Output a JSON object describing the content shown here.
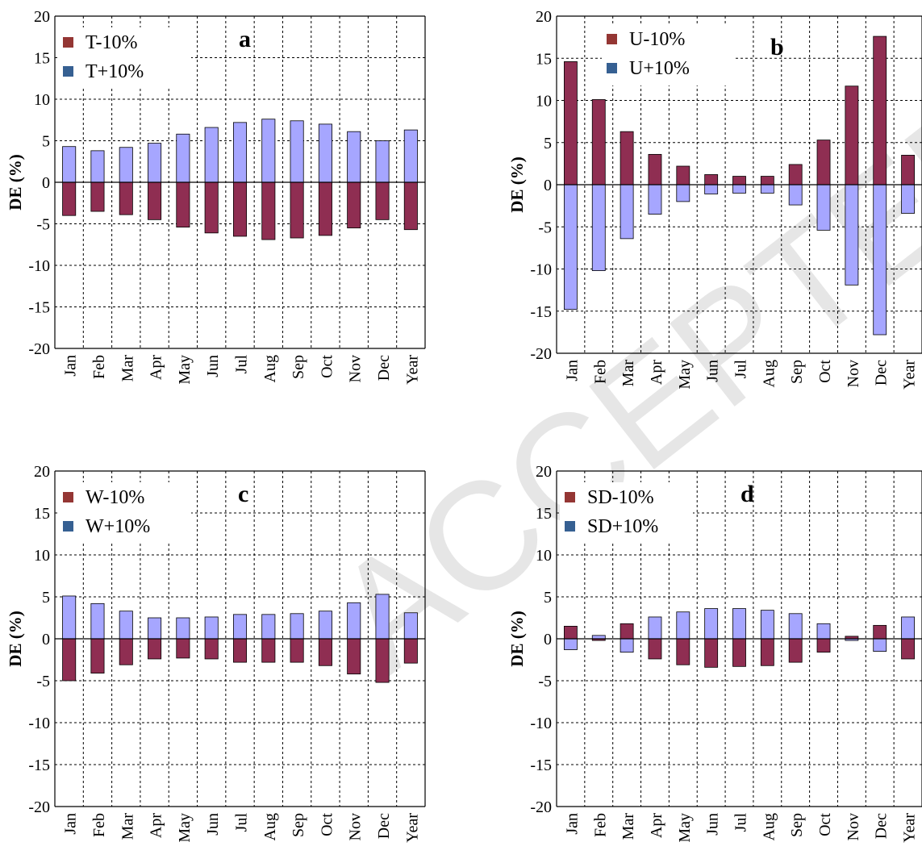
{
  "colors": {
    "minus": "#8f2e52",
    "plus": "#a6a6ff",
    "minus_legend": "#943634",
    "plus_legend": "#366092"
  },
  "watermark": "ACCEPTED",
  "chart_data": [
    {
      "panel": "a",
      "type": "bar",
      "ylabel": "DE (%)",
      "ylim": [
        -20,
        20
      ],
      "yticks": [
        -20,
        -15,
        -10,
        -5,
        0,
        5,
        10,
        15,
        20
      ],
      "categories": [
        "Jan",
        "Feb",
        "Mar",
        "Apr",
        "May",
        "Jun",
        "Jul",
        "Aug",
        "Sep",
        "Oct",
        "Nov",
        "Dec",
        "Year"
      ],
      "grid": true,
      "legend_position": "top-left",
      "series": [
        {
          "name": "T-10%",
          "values": [
            -4.0,
            -3.5,
            -3.9,
            -4.5,
            -5.4,
            -6.1,
            -6.5,
            -6.9,
            -6.7,
            -6.4,
            -5.5,
            -4.5,
            -5.7
          ]
        },
        {
          "name": "T+10%",
          "values": [
            4.3,
            3.8,
            4.2,
            4.7,
            5.8,
            6.6,
            7.2,
            7.6,
            7.4,
            7.0,
            6.1,
            5.0,
            6.3
          ]
        }
      ]
    },
    {
      "panel": "b",
      "type": "bar",
      "ylabel": "DE (%)",
      "ylim": [
        -20,
        20
      ],
      "yticks": [
        -20,
        -15,
        -10,
        -5,
        0,
        5,
        10,
        15,
        20
      ],
      "categories": [
        "Jan",
        "Feb",
        "Mar",
        "Apr",
        "May",
        "Jun",
        "Jul",
        "Aug",
        "Sep",
        "Oct",
        "Nov",
        "Dec",
        "Year"
      ],
      "grid": true,
      "legend_position": "top-left",
      "series": [
        {
          "name": "U-10%",
          "values": [
            14.6,
            10.1,
            6.3,
            3.6,
            2.2,
            1.2,
            1.0,
            1.0,
            2.4,
            5.3,
            11.7,
            17.6,
            3.5
          ]
        },
        {
          "name": "U+10%",
          "values": [
            -14.8,
            -10.2,
            -6.4,
            -3.5,
            -2.0,
            -1.1,
            -1.0,
            -1.0,
            -2.4,
            -5.4,
            -11.9,
            -17.8,
            -3.4
          ]
        }
      ]
    },
    {
      "panel": "c",
      "type": "bar",
      "ylabel": "DE (%)",
      "ylim": [
        -20,
        20
      ],
      "yticks": [
        -20,
        -15,
        -10,
        -5,
        0,
        5,
        10,
        15,
        20
      ],
      "categories": [
        "Jan",
        "Feb",
        "Mar",
        "Apr",
        "May",
        "Jun",
        "Jul",
        "Aug",
        "Sep",
        "Oct",
        "Nov",
        "Dec",
        "Year"
      ],
      "grid": true,
      "legend_position": "top-left",
      "series": [
        {
          "name": "W-10%",
          "values": [
            -5.0,
            -4.1,
            -3.1,
            -2.4,
            -2.3,
            -2.4,
            -2.8,
            -2.8,
            -2.8,
            -3.2,
            -4.2,
            -5.2,
            -2.9
          ]
        },
        {
          "name": "W+10%",
          "values": [
            5.1,
            4.2,
            3.3,
            2.5,
            2.5,
            2.6,
            2.9,
            2.9,
            3.0,
            3.3,
            4.3,
            5.3,
            3.1
          ]
        }
      ]
    },
    {
      "panel": "d",
      "type": "bar",
      "ylabel": "DE (%)",
      "ylim": [
        -20,
        20
      ],
      "yticks": [
        -20,
        -15,
        -10,
        -5,
        0,
        5,
        10,
        15,
        20
      ],
      "categories": [
        "Jan",
        "Feb",
        "Mar",
        "Apr",
        "May",
        "Jun",
        "Jul",
        "Aug",
        "Sep",
        "Oct",
        "Nov",
        "Dec",
        "Year"
      ],
      "grid": true,
      "legend_position": "top-left",
      "series": [
        {
          "name": "SD-10%",
          "values": [
            1.5,
            -0.2,
            1.8,
            -2.4,
            -3.1,
            -3.4,
            -3.3,
            -3.2,
            -2.8,
            -1.6,
            0.3,
            1.6,
            -2.4
          ]
        },
        {
          "name": "SD+10%",
          "values": [
            -1.3,
            0.4,
            -1.6,
            2.6,
            3.2,
            3.6,
            3.6,
            3.4,
            3.0,
            1.8,
            -0.2,
            -1.5,
            2.6
          ]
        }
      ]
    }
  ]
}
